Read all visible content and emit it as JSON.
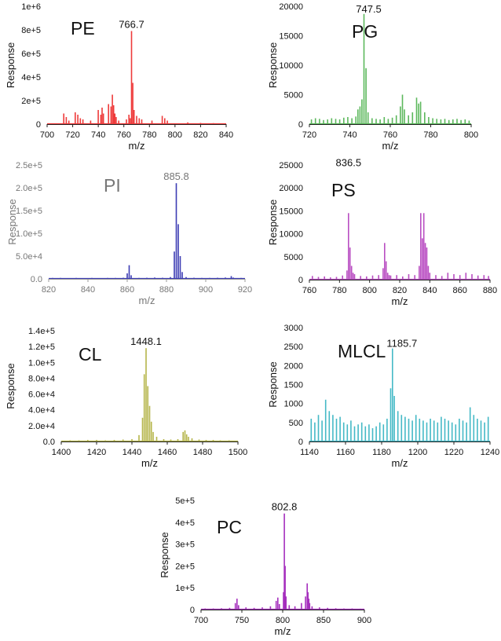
{
  "chart_data": [
    {
      "type": "bar",
      "label": "PE",
      "color": "#ee3b3b",
      "xlabel": "m/z",
      "ylabel": "Response",
      "xlim": [
        700,
        840
      ],
      "ylim": [
        0,
        1000000
      ],
      "xticks": [
        "700",
        "720",
        "740",
        "760",
        "780",
        "800",
        "820",
        "840"
      ],
      "yticks": [
        "0",
        "2e+5",
        "4e+5",
        "6e+5",
        "8e+5",
        "1e+6"
      ],
      "peak_label": "766.7",
      "x": [
        713,
        715,
        717,
        722,
        724,
        726,
        728,
        734,
        740,
        742,
        743,
        744,
        748,
        750,
        751,
        752,
        753,
        754,
        756,
        762,
        764,
        765,
        766,
        767,
        768,
        770,
        772,
        774,
        782,
        790,
        792,
        794,
        810,
        820,
        830
      ],
      "y": [
        90000,
        60000,
        30000,
        100000,
        80000,
        50000,
        40000,
        30000,
        120000,
        80000,
        140000,
        90000,
        170000,
        150000,
        250000,
        160000,
        90000,
        60000,
        30000,
        40000,
        80000,
        50000,
        790000,
        350000,
        120000,
        70000,
        50000,
        40000,
        30000,
        70000,
        50000,
        30000,
        15000,
        10000,
        8000
      ]
    },
    {
      "type": "bar",
      "label": "PG",
      "color": "#5cb85c",
      "xlabel": "m/z",
      "ylabel": "Response",
      "xlim": [
        720,
        800
      ],
      "ylim": [
        0,
        20000
      ],
      "xticks": [
        "720",
        "740",
        "760",
        "780",
        "800"
      ],
      "yticks": [
        "0",
        "5000",
        "10000",
        "15000",
        "20000"
      ],
      "peak_label": "747.5",
      "x": [
        721,
        723,
        725,
        727,
        729,
        731,
        733,
        735,
        737,
        739,
        741,
        743,
        744,
        745,
        746,
        747,
        748,
        749,
        751,
        753,
        755,
        757,
        759,
        761,
        763,
        765,
        766,
        767,
        769,
        771,
        773,
        774,
        775,
        777,
        779,
        781,
        783,
        785,
        787,
        789,
        791,
        793,
        795,
        797,
        799
      ],
      "y": [
        800,
        1000,
        900,
        700,
        800,
        1000,
        900,
        800,
        1100,
        1200,
        1000,
        1300,
        2500,
        3000,
        4200,
        18700,
        9500,
        2000,
        1000,
        900,
        800,
        1200,
        900,
        1100,
        1500,
        3000,
        5000,
        2500,
        1500,
        2000,
        4500,
        3500,
        3800,
        2000,
        1200,
        1000,
        900,
        800,
        900,
        700,
        800,
        900,
        700,
        800,
        600
      ]
    },
    {
      "type": "bar",
      "label": "PI",
      "color": "#3c3cb4",
      "xlabel": "m/z",
      "ylabel": "Response",
      "xlim": [
        820,
        920
      ],
      "ylim": [
        0,
        250000
      ],
      "xticks": [
        "820",
        "840",
        "860",
        "880",
        "900",
        "920"
      ],
      "yticks": [
        "0.0",
        "5.0e+4",
        "1.0e+5",
        "1.5e+5",
        "2.0e+5",
        "2.5e+5"
      ],
      "peak_label": "885.8",
      "x": [
        822,
        826,
        830,
        834,
        838,
        842,
        846,
        850,
        854,
        858,
        860,
        861,
        862,
        866,
        870,
        874,
        878,
        882,
        884,
        885,
        886,
        887,
        888,
        890,
        894,
        898,
        902,
        906,
        910,
        913,
        914,
        918
      ],
      "y": [
        2000,
        2000,
        1500,
        2000,
        1500,
        2000,
        1500,
        2000,
        2000,
        2500,
        12000,
        30000,
        8000,
        2000,
        2500,
        3000,
        2500,
        4000,
        60000,
        210000,
        120000,
        50000,
        15000,
        4000,
        2500,
        2000,
        2000,
        2500,
        3000,
        6000,
        3000,
        2000
      ]
    },
    {
      "type": "bar",
      "label": "PS",
      "color": "#b94ec2",
      "xlabel": "m/z",
      "ylabel": "Response",
      "xlim": [
        760,
        880
      ],
      "ylim": [
        0,
        25000
      ],
      "xticks": [
        "760",
        "780",
        "800",
        "820",
        "840",
        "860",
        "880"
      ],
      "yticks": [
        "0",
        "5000",
        "10000",
        "15000",
        "20000",
        "25000"
      ],
      "peak_label": "836.5",
      "x": [
        762,
        766,
        770,
        774,
        778,
        782,
        785,
        786,
        787,
        788,
        789,
        790,
        794,
        798,
        802,
        806,
        809,
        810,
        811,
        812,
        813,
        814,
        818,
        822,
        826,
        830,
        833,
        834,
        835,
        836,
        837,
        838,
        839,
        840,
        844,
        848,
        852,
        856,
        860,
        864,
        868,
        872,
        876,
        879
      ],
      "y": [
        800,
        600,
        700,
        500,
        600,
        900,
        2000,
        14500,
        7000,
        3000,
        1500,
        1200,
        800,
        700,
        900,
        1000,
        2500,
        8000,
        4000,
        1500,
        1000,
        900,
        1000,
        700,
        1200,
        1000,
        3000,
        14500,
        9000,
        14500,
        8000,
        7000,
        3000,
        1500,
        1000,
        800,
        1500,
        1200,
        1000,
        1500,
        1200,
        900,
        1000,
        800
      ]
    },
    {
      "type": "bar",
      "label": "CL",
      "color": "#b5b54a",
      "xlabel": "m/z",
      "ylabel": "Response",
      "xlim": [
        1400,
        1500
      ],
      "ylim": [
        0,
        140000
      ],
      "xticks": [
        "1400",
        "1420",
        "1440",
        "1460",
        "1480",
        "1500"
      ],
      "yticks": [
        "0.0",
        "2.0e+4",
        "4.0e+4",
        "6.0e+4",
        "8.0e+4",
        "1.0e+5",
        "1.2e+5",
        "1.4e+5"
      ],
      "peak_label": "1448.1",
      "x": [
        1405,
        1410,
        1415,
        1420,
        1425,
        1430,
        1435,
        1440,
        1444,
        1446,
        1447,
        1448,
        1449,
        1450,
        1451,
        1452,
        1454,
        1458,
        1462,
        1466,
        1469,
        1470,
        1471,
        1472,
        1474,
        1478,
        1482,
        1486,
        1490,
        1495
      ],
      "y": [
        1500,
        1500,
        2000,
        2000,
        1500,
        2000,
        2500,
        3000,
        8000,
        30000,
        85000,
        118000,
        70000,
        45000,
        25000,
        12000,
        6000,
        3000,
        2500,
        3000,
        12000,
        14000,
        9000,
        6000,
        4000,
        2500,
        2000,
        2000,
        1500,
        1500
      ]
    },
    {
      "type": "bar",
      "label": "MLCL",
      "color": "#45b9c6",
      "xlabel": "m/z",
      "ylabel": "Response",
      "xlim": [
        1140,
        1240
      ],
      "ylim": [
        0,
        3000
      ],
      "xticks": [
        "1140",
        "1160",
        "1180",
        "1200",
        "1220",
        "1240"
      ],
      "yticks": [
        "0",
        "500",
        "1000",
        "1500",
        "2000",
        "2500",
        "3000"
      ],
      "peak_label": "1185.7",
      "x": [
        1141,
        1143,
        1145,
        1147,
        1149,
        1151,
        1153,
        1155,
        1157,
        1159,
        1161,
        1163,
        1165,
        1167,
        1169,
        1171,
        1173,
        1175,
        1177,
        1179,
        1181,
        1183,
        1185,
        1186,
        1187,
        1189,
        1191,
        1193,
        1195,
        1197,
        1199,
        1201,
        1203,
        1205,
        1207,
        1209,
        1211,
        1213,
        1215,
        1217,
        1219,
        1221,
        1223,
        1225,
        1227,
        1229,
        1231,
        1233,
        1235,
        1237,
        1239
      ],
      "y": [
        600,
        500,
        700,
        550,
        1100,
        800,
        700,
        600,
        650,
        500,
        450,
        550,
        400,
        450,
        500,
        400,
        450,
        350,
        400,
        500,
        450,
        600,
        1400,
        2450,
        1200,
        800,
        700,
        650,
        600,
        550,
        700,
        600,
        550,
        500,
        600,
        550,
        500,
        650,
        600,
        550,
        500,
        450,
        600,
        550,
        500,
        900,
        700,
        600,
        550,
        500,
        650
      ]
    },
    {
      "type": "bar",
      "label": "PC",
      "color": "#a52fbd",
      "xlabel": "m/z",
      "ylabel": "Response",
      "xlim": [
        700,
        900
      ],
      "ylim": [
        0,
        500000
      ],
      "xticks": [
        "700",
        "750",
        "800",
        "850",
        "900"
      ],
      "yticks": [
        "0",
        "1e+5",
        "2e+5",
        "3e+5",
        "4e+5",
        "5e+5"
      ],
      "peak_label": "802.8",
      "x": [
        705,
        715,
        725,
        735,
        742,
        744,
        746,
        755,
        765,
        775,
        785,
        792,
        794,
        796,
        801,
        802,
        803,
        804,
        808,
        815,
        823,
        828,
        830,
        831,
        832,
        833,
        836,
        845,
        855,
        865,
        875,
        885,
        895
      ],
      "y": [
        5000,
        5000,
        6000,
        8000,
        30000,
        50000,
        20000,
        10000,
        8000,
        10000,
        15000,
        40000,
        55000,
        25000,
        80000,
        440000,
        200000,
        60000,
        20000,
        15000,
        30000,
        60000,
        120000,
        80000,
        50000,
        30000,
        15000,
        10000,
        8000,
        6000,
        5000,
        5000,
        4000
      ]
    }
  ]
}
